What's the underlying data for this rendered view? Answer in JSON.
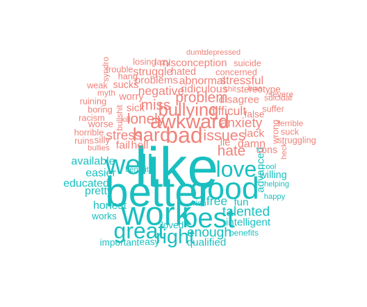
{
  "chart_data": {
    "type": "wordcloud",
    "title": "",
    "colors": {
      "positive": "#1ABFC0",
      "negative": "#F0827A"
    },
    "words": [
      {
        "text": "like",
        "weight": 10.0,
        "sentiment": "positive"
      },
      {
        "text": "better",
        "weight": 7.5,
        "sentiment": "positive"
      },
      {
        "text": "work",
        "weight": 6.0,
        "sentiment": "positive"
      },
      {
        "text": "good",
        "weight": 5.6,
        "sentiment": "positive"
      },
      {
        "text": "well",
        "weight": 5.0,
        "sentiment": "positive"
      },
      {
        "text": "best",
        "weight": 5.0,
        "sentiment": "positive"
      },
      {
        "text": "great",
        "weight": 4.0,
        "sentiment": "positive"
      },
      {
        "text": "love",
        "weight": 4.0,
        "sentiment": "positive"
      },
      {
        "text": "right",
        "weight": 3.6,
        "sentiment": "positive"
      },
      {
        "text": "talented",
        "weight": 2.4,
        "sentiment": "positive"
      },
      {
        "text": "enough",
        "weight": 2.4,
        "sentiment": "positive"
      },
      {
        "text": "free",
        "weight": 2.2,
        "sentiment": "positive"
      },
      {
        "text": "honest",
        "weight": 2.0,
        "sentiment": "positive"
      },
      {
        "text": "available",
        "weight": 2.0,
        "sentiment": "positive"
      },
      {
        "text": "easier",
        "weight": 2.0,
        "sentiment": "positive"
      },
      {
        "text": "educated",
        "weight": 2.0,
        "sentiment": "positive"
      },
      {
        "text": "pretty",
        "weight": 2.0,
        "sentiment": "positive"
      },
      {
        "text": "fun",
        "weight": 1.9,
        "sentiment": "positive"
      },
      {
        "text": "intelligent",
        "weight": 1.9,
        "sentiment": "positive"
      },
      {
        "text": "advanced",
        "weight": 1.9,
        "sentiment": "positive"
      },
      {
        "text": "qualified",
        "weight": 1.9,
        "sentiment": "positive"
      },
      {
        "text": "willing",
        "weight": 1.8,
        "sentiment": "positive"
      },
      {
        "text": "loved",
        "weight": 1.7,
        "sentiment": "positive"
      },
      {
        "text": "works",
        "weight": 1.7,
        "sentiment": "positive"
      },
      {
        "text": "important",
        "weight": 1.7,
        "sentiment": "positive"
      },
      {
        "text": "easy",
        "weight": 1.7,
        "sentiment": "positive"
      },
      {
        "text": "rich",
        "weight": 1.5,
        "sentiment": "positive"
      },
      {
        "text": "benefits",
        "weight": 1.5,
        "sentiment": "positive"
      },
      {
        "text": "benefit",
        "weight": 1.4,
        "sentiment": "positive"
      },
      {
        "text": "cool",
        "weight": 1.4,
        "sentiment": "positive"
      },
      {
        "text": "helping",
        "weight": 1.4,
        "sentiment": "positive"
      },
      {
        "text": "happy",
        "weight": 1.4,
        "sentiment": "positive"
      },
      {
        "text": "bad",
        "weight": 4.0,
        "sentiment": "negative"
      },
      {
        "text": "awkward",
        "weight": 3.6,
        "sentiment": "negative"
      },
      {
        "text": "hard",
        "weight": 3.4,
        "sentiment": "negative"
      },
      {
        "text": "bullying",
        "weight": 3.2,
        "sentiment": "negative"
      },
      {
        "text": "issues",
        "weight": 2.7,
        "sentiment": "negative"
      },
      {
        "text": "lonely",
        "weight": 2.6,
        "sentiment": "negative"
      },
      {
        "text": "problem",
        "weight": 2.6,
        "sentiment": "negative"
      },
      {
        "text": "miss",
        "weight": 2.6,
        "sentiment": "negative"
      },
      {
        "text": "hate",
        "weight": 2.6,
        "sentiment": "negative"
      },
      {
        "text": "stress",
        "weight": 2.4,
        "sentiment": "negative"
      },
      {
        "text": "anxiety",
        "weight": 2.4,
        "sentiment": "negative"
      },
      {
        "text": "difficult",
        "weight": 2.2,
        "sentiment": "negative"
      },
      {
        "text": "negative",
        "weight": 2.2,
        "sentiment": "negative"
      },
      {
        "text": "stressful",
        "weight": 2.1,
        "sentiment": "negative"
      },
      {
        "text": "struggle",
        "weight": 2.0,
        "sentiment": "negative"
      },
      {
        "text": "fail",
        "weight": 2.0,
        "sentiment": "negative"
      },
      {
        "text": "hell",
        "weight": 2.0,
        "sentiment": "negative"
      },
      {
        "text": "damn",
        "weight": 2.0,
        "sentiment": "negative"
      },
      {
        "text": "lack",
        "weight": 2.0,
        "sentiment": "negative"
      },
      {
        "text": "abnormal",
        "weight": 2.0,
        "sentiment": "negative"
      },
      {
        "text": "ridiculous",
        "weight": 2.0,
        "sentiment": "negative"
      },
      {
        "text": "misconception",
        "weight": 1.9,
        "sentiment": "negative"
      },
      {
        "text": "problems",
        "weight": 1.9,
        "sentiment": "negative"
      },
      {
        "text": "disagree",
        "weight": 1.9,
        "sentiment": "negative"
      },
      {
        "text": "sick",
        "weight": 1.9,
        "sentiment": "negative"
      },
      {
        "text": "worry",
        "weight": 1.8,
        "sentiment": "negative"
      },
      {
        "text": "sucks",
        "weight": 1.8,
        "sentiment": "negative"
      },
      {
        "text": "hated",
        "weight": 1.8,
        "sentiment": "negative"
      },
      {
        "text": "cons",
        "weight": 1.8,
        "sentiment": "negative"
      },
      {
        "text": "lie",
        "weight": 1.8,
        "sentiment": "negative"
      },
      {
        "text": "false",
        "weight": 1.7,
        "sentiment": "negative"
      },
      {
        "text": "stereotype",
        "weight": 1.7,
        "sentiment": "negative"
      },
      {
        "text": "worse",
        "weight": 1.7,
        "sentiment": "negative"
      },
      {
        "text": "silly",
        "weight": 1.7,
        "sentiment": "negative"
      },
      {
        "text": "suffer",
        "weight": 1.6,
        "sentiment": "negative"
      },
      {
        "text": "concerned",
        "weight": 1.6,
        "sentiment": "negative"
      },
      {
        "text": "suicide",
        "weight": 1.6,
        "sentiment": "negative"
      },
      {
        "text": "lazy",
        "weight": 1.6,
        "sentiment": "negative"
      },
      {
        "text": "losing",
        "weight": 1.6,
        "sentiment": "negative"
      },
      {
        "text": "trouble",
        "weight": 1.6,
        "sentiment": "negative"
      },
      {
        "text": "hang",
        "weight": 1.6,
        "sentiment": "negative"
      },
      {
        "text": "weak",
        "weight": 1.6,
        "sentiment": "negative"
      },
      {
        "text": "boring",
        "weight": 1.6,
        "sentiment": "negative"
      },
      {
        "text": "ruining",
        "weight": 1.6,
        "sentiment": "negative"
      },
      {
        "text": "racism",
        "weight": 1.6,
        "sentiment": "negative"
      },
      {
        "text": "horrible",
        "weight": 1.6,
        "sentiment": "negative"
      },
      {
        "text": "ruins",
        "weight": 1.6,
        "sentiment": "negative"
      },
      {
        "text": "wrong",
        "weight": 1.6,
        "sentiment": "negative"
      },
      {
        "text": "suck",
        "weight": 1.6,
        "sentiment": "negative"
      },
      {
        "text": "struggling",
        "weight": 1.6,
        "sentiment": "negative"
      },
      {
        "text": "terrible",
        "weight": 1.5,
        "sentiment": "negative"
      },
      {
        "text": "severe",
        "weight": 1.5,
        "sentiment": "negative"
      },
      {
        "text": "suicidal",
        "weight": 1.5,
        "sentiment": "negative"
      },
      {
        "text": "myth",
        "weight": 1.5,
        "sentiment": "negative"
      },
      {
        "text": "bullshit",
        "weight": 1.5,
        "sentiment": "negative"
      },
      {
        "text": "syndro",
        "weight": 1.5,
        "sentiment": "negative"
      },
      {
        "text": "bias",
        "weight": 1.4,
        "sentiment": "negative"
      },
      {
        "text": "shit",
        "weight": 1.4,
        "sentiment": "negative"
      },
      {
        "text": "kill",
        "weight": 1.4,
        "sentiment": "negative"
      },
      {
        "text": "heck",
        "weight": 1.4,
        "sentiment": "negative"
      },
      {
        "text": "bullies",
        "weight": 1.4,
        "sentiment": "negative"
      },
      {
        "text": "dumb",
        "weight": 1.4,
        "sentiment": "negative"
      },
      {
        "text": "depressed",
        "weight": 1.4,
        "sentiment": "negative"
      }
    ]
  }
}
